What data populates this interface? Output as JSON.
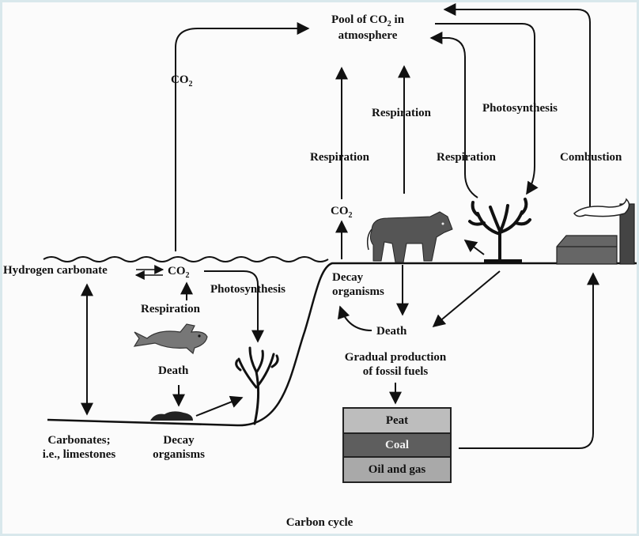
{
  "title": "Pool of CO",
  "title_sub": "2",
  "title_tail": " in",
  "title_line2": "atmosphere",
  "co2_ocean_up": {
    "main": "CO",
    "sub": "2"
  },
  "co2_water": {
    "main": "CO",
    "sub": "2"
  },
  "co2_land": {
    "main": "CO",
    "sub": "2"
  },
  "labels": {
    "hydrogen_carbonate": "Hydrogen carbonate",
    "respiration_water": "Respiration",
    "photosynthesis_water": "Photosynthesis",
    "death_water": "Death",
    "decay_water_1": "Decay",
    "decay_water_2": "organisms",
    "carbonates_1": "Carbonates;",
    "carbonates_2": "i.e., limestones",
    "respiration_land_left": "Respiration",
    "respiration_land_mid": "Respiration",
    "respiration_land_right": "Respiration",
    "photosynthesis_land": "Photosynthesis",
    "combustion": "Combustion",
    "decay_land_1": "Decay",
    "decay_land_2": "organisms",
    "death_land": "Death",
    "fossil_1": "Gradual production",
    "fossil_2": "of fossil fuels"
  },
  "fossil_layers": [
    {
      "label": "Peat",
      "color": "#bdbdbd"
    },
    {
      "label": "Coal",
      "color": "#5e5e5e"
    },
    {
      "label": "Oil and gas",
      "color": "#a9a9a9"
    }
  ],
  "caption": "Carbon cycle",
  "colors": {
    "ink": "#111111",
    "fill_dark": "#555555",
    "frame": "#d9e8ec"
  }
}
